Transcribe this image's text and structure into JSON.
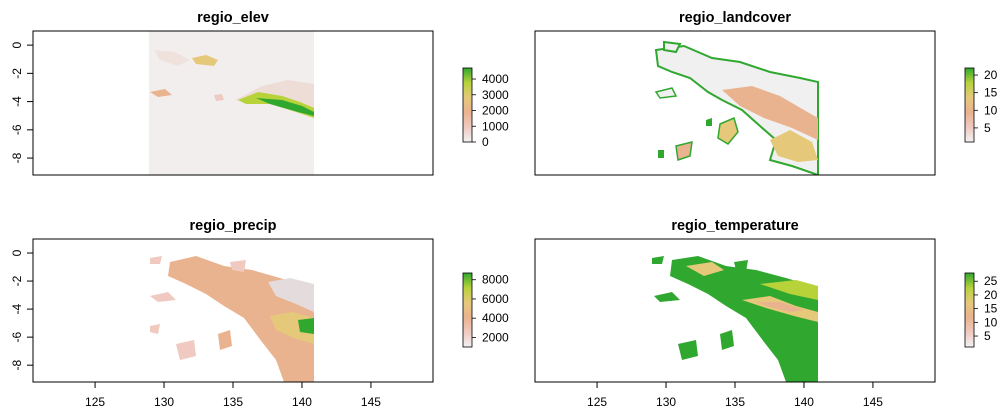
{
  "figure": {
    "type": "raster-map-grid",
    "layout": "2x2"
  },
  "chart_data": [
    {
      "type": "heatmap",
      "title": "regio_elev",
      "x_ticks": [],
      "y_ticks": [
        "0",
        "-2",
        "-4",
        "-6",
        "-8"
      ],
      "xlim": [
        120.5,
        149.5
      ],
      "ylim": [
        -9.2,
        1.0
      ],
      "legend": {
        "placement": "right",
        "ticks": [
          "0",
          "1000",
          "2000",
          "3000",
          "4000"
        ],
        "range": [
          0,
          4700
        ]
      },
      "palette": [
        "#f2f2f2",
        "#f0c9c0",
        "#eab38f",
        "#e6c87a",
        "#b8d23a",
        "#30a830"
      ],
      "raster_extent": {
        "x": [
          129.4,
          141.0
        ],
        "y": [
          -9.2,
          1.0
        ]
      },
      "background": "#f2eeee"
    },
    {
      "type": "heatmap",
      "title": "regio_landcover",
      "x_ticks": [],
      "y_ticks": [],
      "xlim": [
        120.5,
        149.5
      ],
      "ylim": [
        -9.2,
        1.0
      ],
      "legend": {
        "placement": "right",
        "ticks": [
          "5",
          "10",
          "15",
          "20"
        ],
        "range": [
          1,
          22
        ]
      },
      "palette": [
        "#f2f2f2",
        "#f0c9c0",
        "#eab38f",
        "#e6c87a",
        "#b8d23a",
        "#30a830"
      ]
    },
    {
      "type": "heatmap",
      "title": "regio_precip",
      "x_ticks": [
        "125",
        "130",
        "135",
        "140",
        "145"
      ],
      "y_ticks": [
        "0",
        "-2",
        "-4",
        "-6",
        "-8"
      ],
      "xlim": [
        120.5,
        149.5
      ],
      "ylim": [
        -9.2,
        1.0
      ],
      "legend": {
        "placement": "right",
        "ticks": [
          "2000",
          "4000",
          "6000",
          "8000"
        ],
        "range": [
          1000,
          8700
        ]
      },
      "palette": [
        "#f2f2f2",
        "#f0c9c0",
        "#eab38f",
        "#e6c87a",
        "#b8d23a",
        "#30a830"
      ]
    },
    {
      "type": "heatmap",
      "title": "regio_temperature",
      "x_ticks": [
        "125",
        "130",
        "135",
        "140",
        "145"
      ],
      "y_ticks": [],
      "xlim": [
        120.5,
        149.5
      ],
      "ylim": [
        -9.2,
        1.0
      ],
      "legend": {
        "placement": "right",
        "ticks": [
          "5",
          "10",
          "15",
          "20",
          "25"
        ],
        "range": [
          1,
          28
        ]
      },
      "palette": [
        "#f2f2f2",
        "#f0c9c0",
        "#eab38f",
        "#e6c87a",
        "#b8d23a",
        "#30a830"
      ]
    }
  ]
}
